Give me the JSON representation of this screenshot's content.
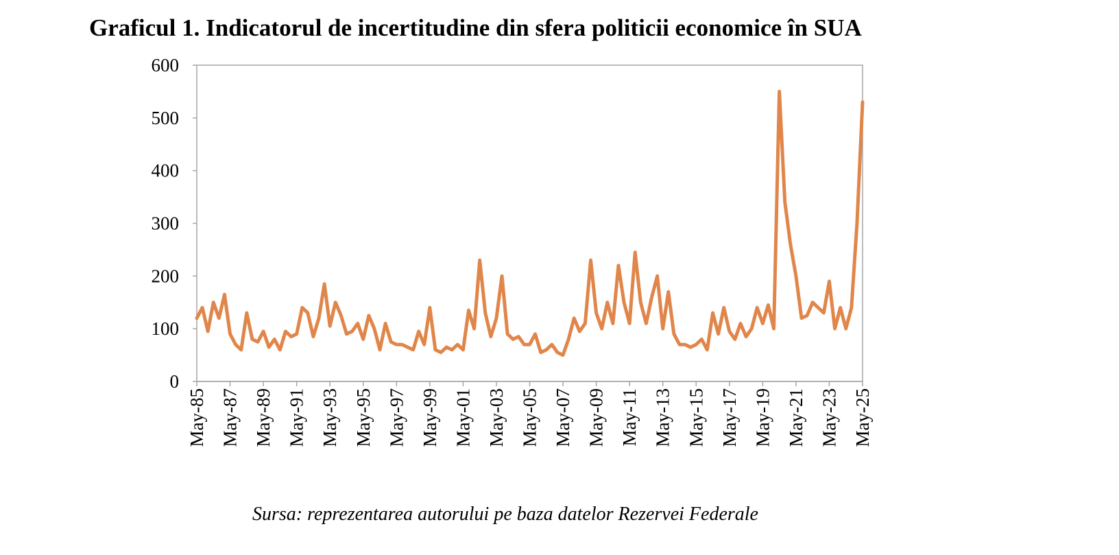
{
  "chart_data": {
    "type": "line",
    "title": "Graficul 1. Indicatorul de incertitudine din sfera politicii economice în SUA",
    "source": "Sursa: reprezentarea autorului pe baza datelor Rezervei Federale",
    "categories": [
      "May-85",
      null,
      null,
      null,
      null,
      null,
      "May-87",
      null,
      null,
      null,
      null,
      null,
      "May-89",
      null,
      null,
      null,
      null,
      null,
      "May-91",
      null,
      null,
      null,
      null,
      null,
      "May-93",
      null,
      null,
      null,
      null,
      null,
      "May-95",
      null,
      null,
      null,
      null,
      null,
      "May-97",
      null,
      null,
      null,
      null,
      null,
      "May-99",
      null,
      null,
      null,
      null,
      null,
      "May-01",
      null,
      null,
      null,
      null,
      null,
      "May-03",
      null,
      null,
      null,
      null,
      null,
      "May-05",
      null,
      null,
      null,
      null,
      null,
      "May-07",
      null,
      null,
      null,
      null,
      null,
      "May-09",
      null,
      null,
      null,
      null,
      null,
      "May-11",
      null,
      null,
      null,
      null,
      null,
      "May-13",
      null,
      null,
      null,
      null,
      null,
      "May-15",
      null,
      null,
      null,
      null,
      null,
      "May-17",
      null,
      null,
      null,
      null,
      null,
      "May-19",
      null,
      null,
      null,
      null,
      null,
      "May-21",
      null,
      null,
      null,
      null,
      null,
      "May-23",
      null,
      null,
      null,
      null,
      null,
      "May-25"
    ],
    "series": [
      {
        "color": "#e0864a",
        "values": [
          120,
          140,
          95,
          150,
          120,
          165,
          90,
          70,
          60,
          130,
          80,
          75,
          95,
          65,
          80,
          60,
          95,
          85,
          90,
          140,
          130,
          85,
          120,
          185,
          105,
          150,
          125,
          90,
          95,
          110,
          80,
          125,
          100,
          60,
          110,
          75,
          70,
          70,
          65,
          60,
          95,
          70,
          140,
          60,
          55,
          65,
          60,
          70,
          60,
          135,
          100,
          230,
          130,
          85,
          120,
          200,
          90,
          80,
          85,
          70,
          70,
          90,
          55,
          60,
          70,
          55,
          50,
          80,
          120,
          95,
          110,
          230,
          130,
          100,
          150,
          110,
          220,
          150,
          110,
          245,
          150,
          110,
          160,
          200,
          100,
          170,
          90,
          70,
          70,
          65,
          70,
          80,
          60,
          130,
          90,
          140,
          95,
          80,
          110,
          85,
          100,
          140,
          110,
          145,
          100,
          550,
          340,
          260,
          200,
          120,
          125,
          150,
          140,
          130,
          190,
          100,
          140,
          100,
          140,
          300,
          530
        ]
      }
    ],
    "ylim": [
      0,
      600
    ],
    "yticks": [
      0,
      100,
      200,
      300,
      400,
      500,
      600
    ]
  }
}
